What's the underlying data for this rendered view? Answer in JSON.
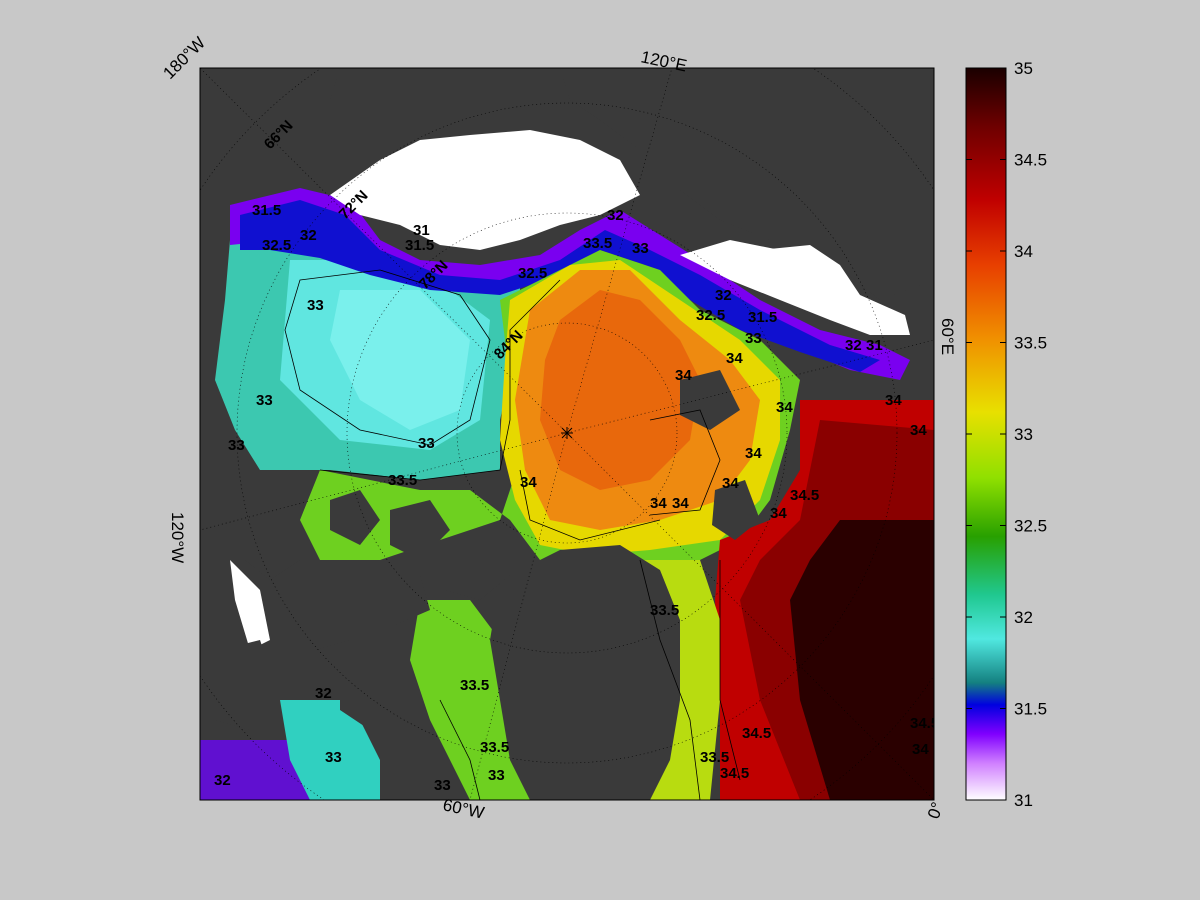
{
  "map": {
    "border_labels": {
      "top_left": "180°W",
      "top": "120°E",
      "right": "60°E",
      "bottom_right": "0°",
      "bottom": "60°W",
      "left": "120°W"
    },
    "latitude_labels": [
      "66°N",
      "72°N",
      "78°N",
      "84°N"
    ],
    "contour_labels": [
      "31.5",
      "32",
      "32.5",
      "31",
      "31.5",
      "32",
      "33.5",
      "33",
      "32.5",
      "33",
      "33",
      "32.5",
      "32",
      "31.5",
      "33",
      "34",
      "34",
      "32",
      "31",
      "33",
      "34",
      "34",
      "33",
      "34",
      "34",
      "34",
      "33.5",
      "34",
      "34",
      "34.5",
      "34",
      "34",
      "33.5",
      "32",
      "33.5",
      "33",
      "33.5",
      "33",
      "33",
      "32",
      "33.5",
      "34.5",
      "34.5",
      "34.5",
      "34"
    ],
    "colors": {
      "land": "#3a3a3a",
      "ice": "#ffffff",
      "background": "#c8c8c8"
    }
  },
  "colorbar": {
    "min": 31,
    "max": 35,
    "ticks": [
      "35",
      "34.5",
      "34",
      "33.5",
      "33",
      "32.5",
      "32",
      "31.5",
      "31"
    ],
    "stops": [
      "#1a0000",
      "#6e0000",
      "#c00000",
      "#e84000",
      "#f09000",
      "#e8e000",
      "#90e000",
      "#28a000",
      "#20c890",
      "#50e8e0",
      "#148080",
      "#0000e0",
      "#8000ff",
      "#d080ff",
      "#ffffff"
    ]
  }
}
